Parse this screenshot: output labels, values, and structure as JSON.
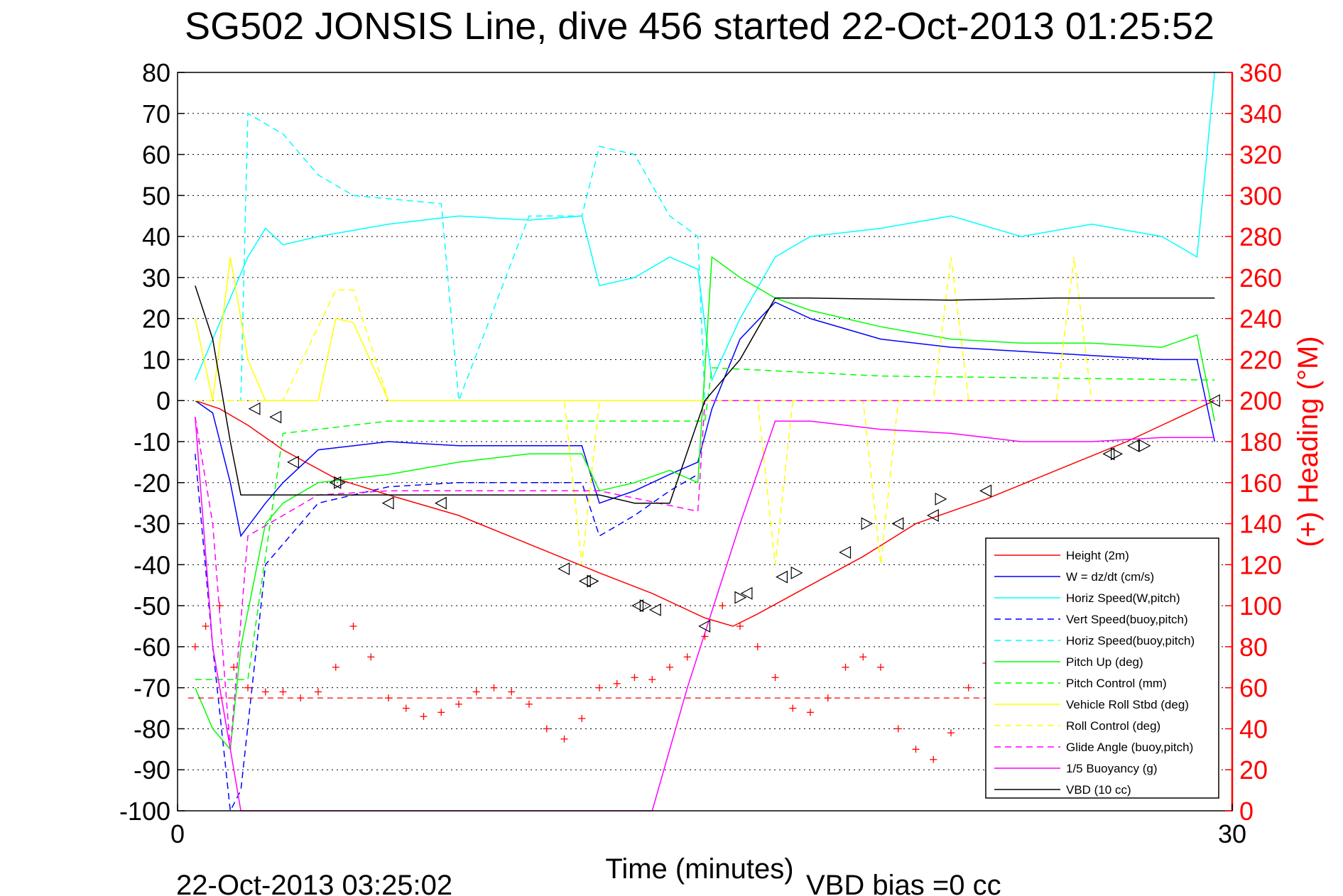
{
  "chart_data": {
    "type": "line",
    "title": "SG502 JONSIS Line, dive 456 started 22-Oct-2013 01:25:52",
    "xlabel": "Time (minutes)",
    "ylabel": "",
    "y2label": "(+) Heading (°M)",
    "xlim": [
      0,
      30
    ],
    "ylim": [
      -100,
      80
    ],
    "y2lim": [
      0,
      360
    ],
    "x_ticks": [
      "0",
      "30"
    ],
    "y_ticks": [
      "80",
      "70",
      "60",
      "50",
      "40",
      "30",
      "20",
      "10",
      "0",
      "-10",
      "-20",
      "-30",
      "-40",
      "-50",
      "-60",
      "-70",
      "-80",
      "-90",
      "-100"
    ],
    "y2_ticks": [
      "360",
      "340",
      "320",
      "300",
      "280",
      "260",
      "240",
      "220",
      "200",
      "180",
      "160",
      "140",
      "120",
      "100",
      "80",
      "60",
      "40",
      "20",
      "0"
    ],
    "grid": "horizontal dotted",
    "legend_position": "bottom-right",
    "colors": {
      "heading_axis": "#ff0000",
      "height": "#ff0000",
      "w": "#0000ff",
      "cyan": "#00ffff",
      "green": "#00ff00",
      "yellow": "#ffff00",
      "magenta": "#ff00ff",
      "vbd": "#000000"
    },
    "series": [
      {
        "name": "Height (2m)",
        "color": "#ff0000",
        "style": "solid",
        "x": [
          0.5,
          1.2,
          2.0,
          3.0,
          4.5,
          6.0,
          8.0,
          10.0,
          12.0,
          13.5,
          15.0,
          15.8,
          16.5,
          18.0,
          19.5,
          21.0,
          23.0,
          25.0,
          27.0,
          29.5
        ],
        "y": [
          0,
          -2,
          -6,
          -12,
          -19,
          -23,
          -28,
          -35,
          -42,
          -47,
          -53,
          -55,
          -52,
          -45,
          -38,
          -30,
          -24,
          -17,
          -10,
          0
        ]
      },
      {
        "name": "W = dz/dt (cm/s)",
        "color": "#0000ff",
        "style": "solid",
        "x": [
          0.5,
          1.0,
          1.5,
          1.8,
          2.5,
          3.0,
          4.0,
          6.0,
          8.0,
          10.0,
          11.5,
          12.0,
          13.0,
          14.0,
          14.8,
          15.2,
          16.0,
          17.0,
          18.0,
          20.0,
          22.0,
          24.0,
          26.0,
          28.0,
          29.0,
          29.5
        ],
        "y": [
          0,
          -3,
          -20,
          -33,
          -25,
          -20,
          -12,
          -10,
          -11,
          -11,
          -11,
          -25,
          -22,
          -18,
          -15,
          -2,
          15,
          24,
          20,
          15,
          13,
          12,
          11,
          10,
          10,
          -10
        ]
      },
      {
        "name": "Horiz Speed(W,pitch)",
        "color": "#00ffff",
        "style": "solid",
        "x": [
          0.5,
          1.0,
          1.5,
          2.0,
          2.5,
          3.0,
          4.0,
          6.0,
          8.0,
          10.0,
          11.5,
          12.0,
          13.0,
          14.0,
          14.8,
          15.2,
          16.0,
          17.0,
          18.0,
          20.0,
          22.0,
          24.0,
          26.0,
          28.0,
          29.0,
          29.5
        ],
        "y": [
          5,
          15,
          25,
          35,
          42,
          38,
          40,
          43,
          45,
          44,
          45,
          28,
          30,
          35,
          32,
          5,
          20,
          35,
          40,
          42,
          45,
          40,
          43,
          40,
          35,
          80
        ]
      },
      {
        "name": "Vert Speed(buoy,pitch)",
        "color": "#0000ff",
        "style": "dashed",
        "x": [
          0.5,
          1.0,
          1.5,
          1.8,
          2.5,
          3.0,
          4.0,
          6.0,
          8.0,
          10.0,
          11.5,
          12.0,
          13.0,
          14.0,
          14.8
        ],
        "y": [
          -13,
          -60,
          -100,
          -95,
          -40,
          -35,
          -25,
          -21,
          -20,
          -20,
          -20,
          -33,
          -28,
          -22,
          -18
        ]
      },
      {
        "name": "Horiz Speed(buoy,pitch)",
        "color": "#00ffff",
        "style": "dashed",
        "x": [
          0.5,
          1.0,
          1.8,
          2.0,
          3.0,
          4.0,
          5.0,
          7.5,
          8.0,
          10.0,
          11.5,
          12.0,
          13.0,
          14.0,
          14.8,
          15.0
        ],
        "y": [
          0,
          0,
          0,
          70,
          65,
          55,
          50,
          48,
          0,
          45,
          45,
          62,
          60,
          45,
          40,
          0
        ]
      },
      {
        "name": "Pitch Up (deg)",
        "color": "#00ff00",
        "style": "solid",
        "x": [
          0.5,
          1.0,
          1.5,
          1.8,
          2.5,
          3.0,
          4.0,
          6.0,
          8.0,
          10.0,
          11.5,
          12.0,
          13.0,
          14.0,
          14.8,
          15.2,
          16.0,
          17.0,
          18.0,
          20.0,
          22.0,
          24.0,
          26.0,
          28.0,
          29.0,
          29.5
        ],
        "y": [
          -70,
          -80,
          -85,
          -60,
          -30,
          -25,
          -20,
          -18,
          -15,
          -13,
          -13,
          -22,
          -20,
          -17,
          -20,
          35,
          30,
          25,
          22,
          18,
          15,
          14,
          14,
          13,
          16,
          -5
        ]
      },
      {
        "name": "Pitch Control (mm)",
        "color": "#00ff00",
        "style": "dashed",
        "x": [
          0.5,
          2.0,
          3.0,
          4.0,
          6.0,
          12.0,
          15.0,
          15.2,
          20.0,
          29.5
        ],
        "y": [
          -68,
          -68,
          -8,
          -7,
          -5,
          -5,
          -5,
          8,
          6,
          5
        ]
      },
      {
        "name": "Vehicle Roll Stbd (deg)",
        "color": "#ffff00",
        "style": "solid",
        "x": [
          0.5,
          1.0,
          1.5,
          2.0,
          2.5,
          3.0,
          4.0,
          4.5,
          5.0,
          6.0,
          7.0,
          8.0,
          10.0,
          12.0,
          14.0,
          16.0,
          18.0,
          20.0,
          22.0,
          24.0,
          26.0,
          28.0,
          29.5
        ],
        "y": [
          20,
          0,
          35,
          10,
          0,
          0,
          0,
          20,
          19,
          0,
          0,
          0,
          0,
          0,
          0,
          0,
          0,
          0,
          0,
          0,
          0,
          0,
          0
        ]
      },
      {
        "name": "Roll Control (deg)",
        "color": "#ffff00",
        "style": "dashed",
        "x": [
          0.5,
          3.0,
          4.5,
          5.0,
          6.0,
          11.0,
          11.5,
          12.0,
          16.5,
          17.0,
          17.5,
          19.5,
          20.0,
          20.5,
          21.5,
          22.0,
          22.5,
          25.0,
          25.5,
          26.0,
          29.5
        ],
        "y": [
          0,
          0,
          27,
          27,
          0,
          0,
          -40,
          0,
          0,
          -40,
          0,
          0,
          -40,
          0,
          0,
          35,
          0,
          0,
          35,
          0,
          0
        ]
      },
      {
        "name": "Glide Angle (buoy,pitch)",
        "color": "#ff00ff",
        "style": "dashed",
        "x": [
          0.5,
          1.0,
          1.5,
          2.0,
          3.0,
          4.0,
          6.0,
          12.0,
          14.8,
          15.0,
          29.5
        ],
        "y": [
          -4,
          -30,
          -85,
          -33,
          -28,
          -23,
          -22,
          -22,
          -27,
          0,
          0
        ]
      },
      {
        "name": "1/5 Buoyancy (g)",
        "color": "#ff00ff",
        "style": "solid",
        "x": [
          0.5,
          1.0,
          1.5,
          1.8,
          2.0,
          13.5,
          14.5,
          16.0,
          17.0,
          18.0,
          20.0,
          22.0,
          24.0,
          26.0,
          28.0,
          29.5
        ],
        "y": [
          -4,
          -60,
          -85,
          -100,
          -100,
          -100,
          -70,
          -30,
          -5,
          -5,
          -7,
          -8,
          -10,
          -10,
          -9,
          -9
        ]
      },
      {
        "name": "VBD (10 cc)",
        "color": "#000000",
        "style": "solid",
        "x": [
          0.5,
          1.0,
          1.5,
          1.8,
          4.0,
          8.0,
          12.0,
          13.0,
          14.0,
          15.0,
          16.0,
          17.0,
          18.0,
          22.0,
          25.0,
          29.5
        ],
        "y": [
          28,
          15,
          -10,
          -23,
          -23,
          -23,
          -23,
          -25,
          -25,
          0,
          10,
          25,
          25,
          24.5,
          25,
          25
        ]
      }
    ],
    "heading": {
      "name": "(+) Heading (°M)",
      "color": "#ff0000",
      "marker": "+",
      "mean": 55,
      "x": [
        0.5,
        0.8,
        1.2,
        1.6,
        2.0,
        2.5,
        3.0,
        3.5,
        4.0,
        4.5,
        5.0,
        5.5,
        6.0,
        6.5,
        7.0,
        7.5,
        8.0,
        8.5,
        9.0,
        9.5,
        10.0,
        10.5,
        11.0,
        11.5,
        12.0,
        12.5,
        13.0,
        13.5,
        14.0,
        14.5,
        15.0,
        15.5,
        16.0,
        16.5,
        17.0,
        17.5,
        18.0,
        18.5,
        19.0,
        19.5,
        20.0,
        20.5,
        21.0,
        21.5,
        22.0,
        22.5,
        23.0,
        23.5
      ],
      "y": [
        80,
        90,
        100,
        70,
        60,
        58,
        58,
        55,
        58,
        70,
        90,
        75,
        55,
        50,
        46,
        48,
        52,
        58,
        60,
        58,
        52,
        40,
        35,
        45,
        60,
        62,
        65,
        64,
        70,
        75,
        85,
        100,
        90,
        80,
        65,
        50,
        48,
        55,
        70,
        75,
        70,
        40,
        30,
        25,
        38,
        60,
        72,
        78
      ]
    },
    "markers": [
      {
        "type": "triangle-left",
        "x": [
          2.2,
          2.8,
          3.3,
          4.5,
          6.0,
          7.5,
          11.0,
          11.6,
          13.1,
          13.6,
          15.0,
          16.2,
          17.2,
          19.0,
          20.5,
          21.5,
          23.0,
          26.5,
          27.2,
          29.5
        ],
        "y": [
          -2,
          -4,
          -15,
          -20,
          -25,
          -25,
          -41,
          -44,
          -50,
          -51,
          -55,
          -47,
          -43,
          -37,
          -30,
          -28,
          -22,
          -13,
          -11,
          0
        ]
      },
      {
        "type": "triangle-right",
        "x": [
          4.6,
          11.8,
          13.3,
          16.0,
          17.6,
          19.6,
          21.7,
          26.7,
          27.5
        ],
        "y": [
          -20,
          -44,
          -50,
          -48,
          -42,
          -30,
          -24,
          -13,
          -11
        ]
      }
    ],
    "legend": [
      {
        "label": "Height (2m)",
        "color": "#ff0000",
        "style": "solid"
      },
      {
        "label": "W = dz/dt (cm/s)",
        "color": "#0000ff",
        "style": "solid"
      },
      {
        "label": "Horiz Speed(W,pitch)",
        "color": "#00ffff",
        "style": "solid"
      },
      {
        "label": "Vert Speed(buoy,pitch)",
        "color": "#0000ff",
        "style": "dashed"
      },
      {
        "label": "Horiz Speed(buoy,pitch)",
        "color": "#00ffff",
        "style": "dashed"
      },
      {
        "label": "Pitch Up (deg)",
        "color": "#00ff00",
        "style": "solid"
      },
      {
        "label": "Pitch Control (mm)",
        "color": "#00ff00",
        "style": "dashed"
      },
      {
        "label": "Vehicle Roll Stbd (deg)",
        "color": "#ffff00",
        "style": "solid"
      },
      {
        "label": "Roll Control (deg)",
        "color": "#ffff00",
        "style": "dashed"
      },
      {
        "label": "Glide Angle (buoy,pitch)",
        "color": "#ff00ff",
        "style": "dashed"
      },
      {
        "label": "1/5 Buoyancy (g)",
        "color": "#ff00ff",
        "style": "solid"
      },
      {
        "label": "VBD (10 cc)",
        "color": "#000000",
        "style": "solid"
      }
    ],
    "annotations": {
      "timestamp": "22-Oct-2013 03:25:02",
      "vbd_bias": "VBD bias =0 cc"
    }
  }
}
